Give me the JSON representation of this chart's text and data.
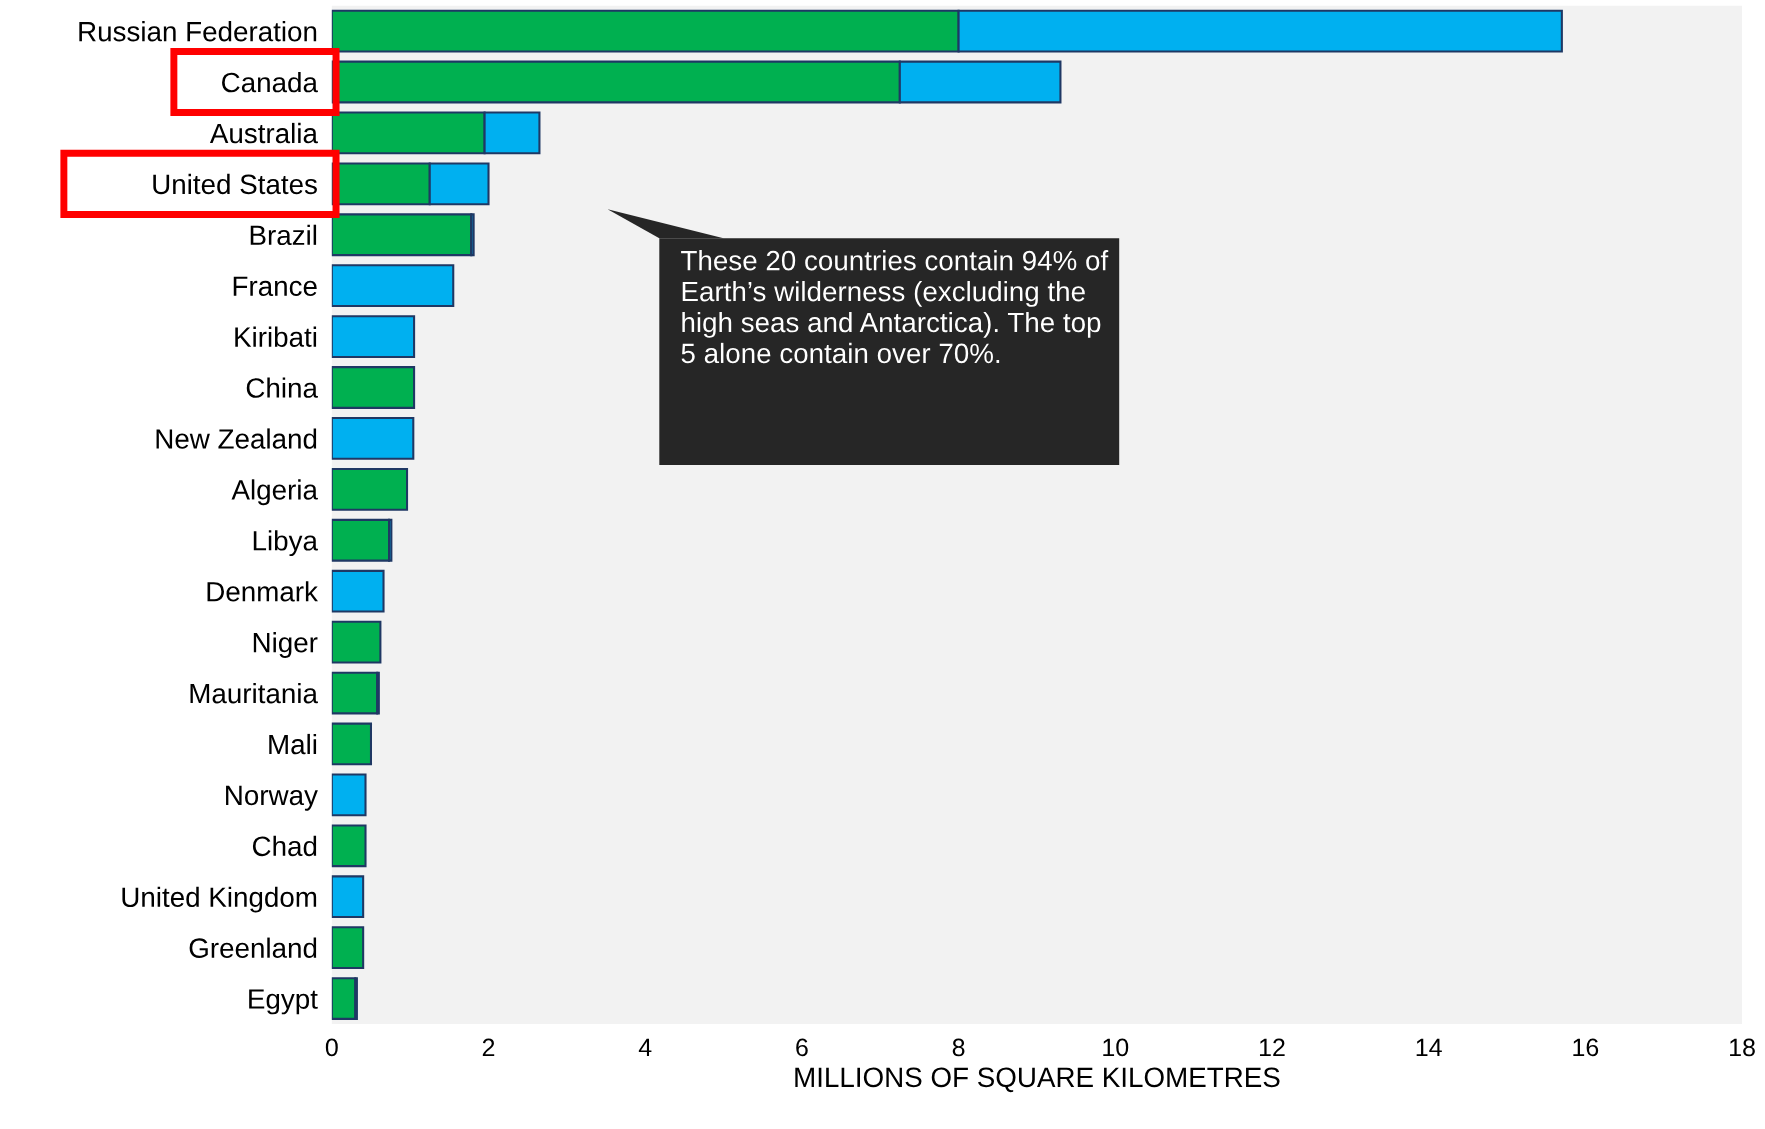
{
  "chart_data": {
    "type": "bar",
    "orientation": "horizontal",
    "stacked": true,
    "xlabel": "MILLIONS OF SQUARE KILOMETRES",
    "categories": [
      "Russian Federation",
      "Canada",
      "Australia",
      "United States",
      "Brazil",
      "France",
      "Kiribati",
      "China",
      "New Zealand",
      "Algeria",
      "Libya",
      "Denmark",
      "Niger",
      "Mauritania",
      "Mali",
      "Norway",
      "Chad",
      "United Kingdom",
      "Greenland",
      "Egypt"
    ],
    "series": [
      {
        "color": "#00b050",
        "values": [
          8.0,
          7.25,
          1.95,
          1.25,
          1.78,
          null,
          null,
          1.05,
          null,
          0.96,
          0.73,
          null,
          0.62,
          0.58,
          0.5,
          null,
          0.43,
          null,
          0.4,
          0.3
        ]
      },
      {
        "color": "#00b0f0",
        "values": [
          7.7,
          2.05,
          0.7,
          0.75,
          0.03,
          1.55,
          1.05,
          null,
          1.04,
          null,
          0.03,
          0.66,
          null,
          0.02,
          null,
          0.43,
          null,
          0.4,
          null,
          0.02
        ]
      }
    ],
    "xlim": [
      0,
      18
    ],
    "xticks": [
      0,
      2,
      4,
      6,
      8,
      10,
      12,
      14,
      16,
      18
    ],
    "grid": false,
    "annotations": [
      "These 20 countries contain 94% of Earth’s wilderness (excluding the high seas and Antarctica). The top 5 alone contain over 70%."
    ]
  }
}
